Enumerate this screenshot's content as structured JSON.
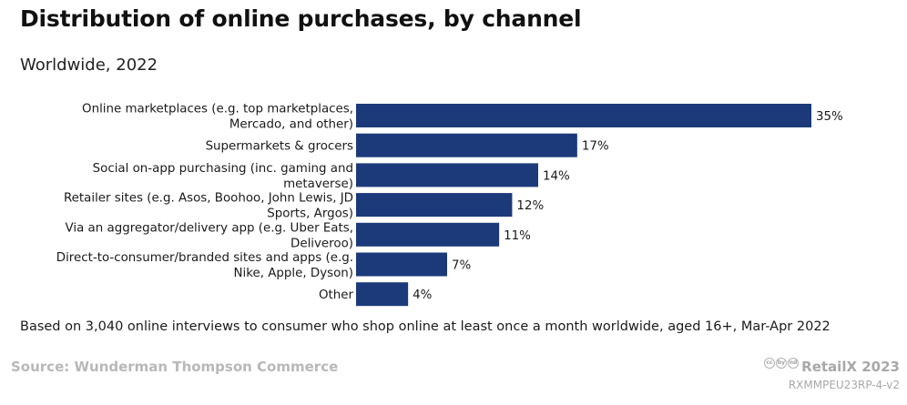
{
  "header": {
    "title": "Distribution of online purchases, by channel",
    "subtitle": "Worldwide, 2022"
  },
  "chart_data": {
    "type": "bar",
    "orientation": "horizontal",
    "title": "Distribution of online purchases, by channel",
    "subtitle": "Worldwide, 2022",
    "categories": [
      [
        "Online marketplaces (e.g. top marketplaces,",
        "Mercado, and other)"
      ],
      [
        "Supermarkets & grocers"
      ],
      [
        "Social on-app purchasing (inc. gaming and",
        "metaverse)"
      ],
      [
        "Retailer sites (e.g. Asos, Boohoo, John Lewis, JD",
        "Sports, Argos)"
      ],
      [
        "Via an aggregator/delivery app (e.g. Uber Eats,",
        "Deliveroo)"
      ],
      [
        "Direct-to-consumer/branded sites and apps (e.g.",
        "Nike, Apple, Dyson)"
      ],
      [
        "Other"
      ]
    ],
    "values": [
      35,
      17,
      14,
      12,
      11,
      7,
      4
    ],
    "value_labels": [
      "35%",
      "17%",
      "14%",
      "12%",
      "11%",
      "7%",
      "4%"
    ],
    "unit": "%",
    "xlim": [
      0,
      35
    ],
    "bar_color": "#1c3a7a",
    "grid": false,
    "legend": "none"
  },
  "footer": {
    "note": "Based on 3,040 online interviews to consumer who shop online at least once a month worldwide, aged 16+, Mar-Apr 2022",
    "source": "Source: Wunderman Thompson Commerce",
    "cc_icons": [
      "cc",
      "by",
      "nd"
    ],
    "brand": "RetailX 2023",
    "code": "RXMMPEU23RP-4-v2"
  }
}
